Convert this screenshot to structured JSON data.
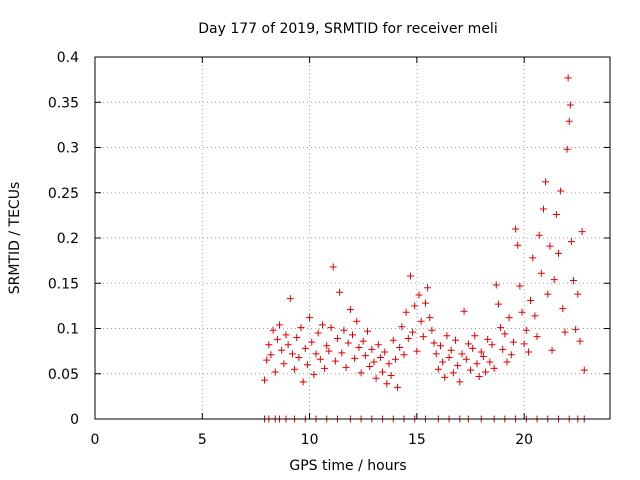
{
  "chart_data": {
    "type": "scatter",
    "title": "Day 177 of 2019, SRMTID for receiver meli",
    "xlabel": "GPS time / hours",
    "ylabel": "SRMTID / TECUs",
    "xlim": [
      0,
      24
    ],
    "ylim": [
      0,
      0.4
    ],
    "x_ticks": [
      0,
      5,
      10,
      15,
      20
    ],
    "x_tick_labels": [
      "0",
      "5",
      "10",
      "15",
      "20"
    ],
    "y_ticks": [
      0,
      0.05,
      0.1,
      0.15,
      0.2,
      0.25,
      0.3,
      0.35,
      0.4
    ],
    "y_tick_labels": [
      "0",
      "0.05",
      "0.1",
      "0.15",
      "0.2",
      "0.25",
      "0.3",
      "0.35",
      "0.4"
    ],
    "grid": true,
    "marker": "+",
    "color": "#e00000",
    "series": [
      {
        "points": [
          [
            7.9,
            0.0
          ],
          [
            8.1,
            0.0
          ],
          [
            8.4,
            0.0
          ],
          [
            8.6,
            0.0
          ],
          [
            8.9,
            0.0
          ],
          [
            9.3,
            0.0
          ],
          [
            9.8,
            0.0
          ],
          [
            10.3,
            0.0
          ],
          [
            10.8,
            0.0
          ],
          [
            11.3,
            0.0
          ],
          [
            11.9,
            0.0
          ],
          [
            12.4,
            0.0
          ],
          [
            12.9,
            0.0
          ],
          [
            13.4,
            0.0
          ],
          [
            13.9,
            0.0
          ],
          [
            14.4,
            0.0
          ],
          [
            14.9,
            0.0
          ],
          [
            15.4,
            0.0
          ],
          [
            16.0,
            0.0
          ],
          [
            16.5,
            0.0
          ],
          [
            17.0,
            0.0
          ],
          [
            17.4,
            0.0
          ],
          [
            18.0,
            0.0
          ],
          [
            18.6,
            0.0
          ],
          [
            19.1,
            0.0
          ],
          [
            19.6,
            0.0
          ],
          [
            20.1,
            0.0
          ],
          [
            20.6,
            0.0
          ],
          [
            21.1,
            0.0
          ],
          [
            21.6,
            0.0
          ],
          [
            22.1,
            0.0
          ],
          [
            22.5,
            0.0
          ],
          [
            22.8,
            0.0
          ],
          [
            7.9,
            0.043
          ],
          [
            8.0,
            0.065
          ],
          [
            8.1,
            0.082
          ],
          [
            8.2,
            0.071
          ],
          [
            8.3,
            0.098
          ],
          [
            8.4,
            0.052
          ],
          [
            8.5,
            0.088
          ],
          [
            8.6,
            0.104
          ],
          [
            8.7,
            0.076
          ],
          [
            8.8,
            0.061
          ],
          [
            8.9,
            0.093
          ],
          [
            9.0,
            0.082
          ],
          [
            9.1,
            0.133
          ],
          [
            9.2,
            0.072
          ],
          [
            9.3,
            0.055
          ],
          [
            9.4,
            0.09
          ],
          [
            9.5,
            0.068
          ],
          [
            9.6,
            0.101
          ],
          [
            9.7,
            0.041
          ],
          [
            9.8,
            0.078
          ],
          [
            9.9,
            0.06
          ],
          [
            10.0,
            0.112
          ],
          [
            10.1,
            0.085
          ],
          [
            10.2,
            0.049
          ],
          [
            10.3,
            0.072
          ],
          [
            10.4,
            0.095
          ],
          [
            10.5,
            0.066
          ],
          [
            10.6,
            0.104
          ],
          [
            10.7,
            0.056
          ],
          [
            10.8,
            0.081
          ],
          [
            10.9,
            0.075
          ],
          [
            11.0,
            0.101
          ],
          [
            11.1,
            0.168
          ],
          [
            11.2,
            0.064
          ],
          [
            11.3,
            0.089
          ],
          [
            11.4,
            0.14
          ],
          [
            11.5,
            0.073
          ],
          [
            11.6,
            0.098
          ],
          [
            11.7,
            0.057
          ],
          [
            11.8,
            0.084
          ],
          [
            11.9,
            0.121
          ],
          [
            12.0,
            0.093
          ],
          [
            12.1,
            0.067
          ],
          [
            12.2,
            0.108
          ],
          [
            12.3,
            0.079
          ],
          [
            12.4,
            0.051
          ],
          [
            12.5,
            0.086
          ],
          [
            12.6,
            0.07
          ],
          [
            12.7,
            0.097
          ],
          [
            12.8,
            0.058
          ],
          [
            12.9,
            0.077
          ],
          [
            13.0,
            0.063
          ],
          [
            13.1,
            0.045
          ],
          [
            13.2,
            0.082
          ],
          [
            13.3,
            0.068
          ],
          [
            13.4,
            0.052
          ],
          [
            13.5,
            0.074
          ],
          [
            13.6,
            0.039
          ],
          [
            13.7,
            0.061
          ],
          [
            13.8,
            0.048
          ],
          [
            13.9,
            0.087
          ],
          [
            14.0,
            0.066
          ],
          [
            14.1,
            0.035
          ],
          [
            14.2,
            0.079
          ],
          [
            14.3,
            0.102
          ],
          [
            14.4,
            0.071
          ],
          [
            14.5,
            0.118
          ],
          [
            14.6,
            0.089
          ],
          [
            14.7,
            0.158
          ],
          [
            14.8,
            0.096
          ],
          [
            14.9,
            0.125
          ],
          [
            15.0,
            0.075
          ],
          [
            15.1,
            0.137
          ],
          [
            15.2,
            0.108
          ],
          [
            15.3,
            0.091
          ],
          [
            15.4,
            0.128
          ],
          [
            15.5,
            0.145
          ],
          [
            15.6,
            0.112
          ],
          [
            15.7,
            0.098
          ],
          [
            15.8,
            0.084
          ],
          [
            15.9,
            0.072
          ],
          [
            16.0,
            0.055
          ],
          [
            16.1,
            0.081
          ],
          [
            16.2,
            0.063
          ],
          [
            16.3,
            0.046
          ],
          [
            16.4,
            0.092
          ],
          [
            16.5,
            0.068
          ],
          [
            16.6,
            0.076
          ],
          [
            16.7,
            0.051
          ],
          [
            16.8,
            0.087
          ],
          [
            16.9,
            0.059
          ],
          [
            17.0,
            0.041
          ],
          [
            17.1,
            0.072
          ],
          [
            17.2,
            0.119
          ],
          [
            17.3,
            0.066
          ],
          [
            17.4,
            0.083
          ],
          [
            17.5,
            0.054
          ],
          [
            17.6,
            0.078
          ],
          [
            17.7,
            0.092
          ],
          [
            17.8,
            0.061
          ],
          [
            17.9,
            0.047
          ],
          [
            18.0,
            0.074
          ],
          [
            18.1,
            0.069
          ],
          [
            18.2,
            0.052
          ],
          [
            18.3,
            0.088
          ],
          [
            18.4,
            0.063
          ],
          [
            18.5,
            0.082
          ],
          [
            18.6,
            0.056
          ],
          [
            18.7,
            0.148
          ],
          [
            18.8,
            0.127
          ],
          [
            18.9,
            0.101
          ],
          [
            19.0,
            0.077
          ],
          [
            19.1,
            0.094
          ],
          [
            19.2,
            0.063
          ],
          [
            19.3,
            0.112
          ],
          [
            19.4,
            0.071
          ],
          [
            19.5,
            0.085
          ],
          [
            19.6,
            0.21
          ],
          [
            19.7,
            0.192
          ],
          [
            19.8,
            0.147
          ],
          [
            19.9,
            0.118
          ],
          [
            20.0,
            0.083
          ],
          [
            20.1,
            0.098
          ],
          [
            20.2,
            0.074
          ],
          [
            20.3,
            0.131
          ],
          [
            20.4,
            0.178
          ],
          [
            20.5,
            0.114
          ],
          [
            20.6,
            0.091
          ],
          [
            20.7,
            0.203
          ],
          [
            20.8,
            0.161
          ],
          [
            20.9,
            0.232
          ],
          [
            21.0,
            0.262
          ],
          [
            21.1,
            0.138
          ],
          [
            21.2,
            0.191
          ],
          [
            21.3,
            0.076
          ],
          [
            21.4,
            0.154
          ],
          [
            21.5,
            0.226
          ],
          [
            21.6,
            0.183
          ],
          [
            21.7,
            0.252
          ],
          [
            21.8,
            0.122
          ],
          [
            21.9,
            0.096
          ],
          [
            22.0,
            0.298
          ],
          [
            22.05,
            0.377
          ],
          [
            22.1,
            0.329
          ],
          [
            22.15,
            0.347
          ],
          [
            22.2,
            0.196
          ],
          [
            22.3,
            0.153
          ],
          [
            22.4,
            0.099
          ],
          [
            22.5,
            0.138
          ],
          [
            22.6,
            0.086
          ],
          [
            22.7,
            0.207
          ],
          [
            22.8,
            0.054
          ]
        ]
      }
    ]
  }
}
